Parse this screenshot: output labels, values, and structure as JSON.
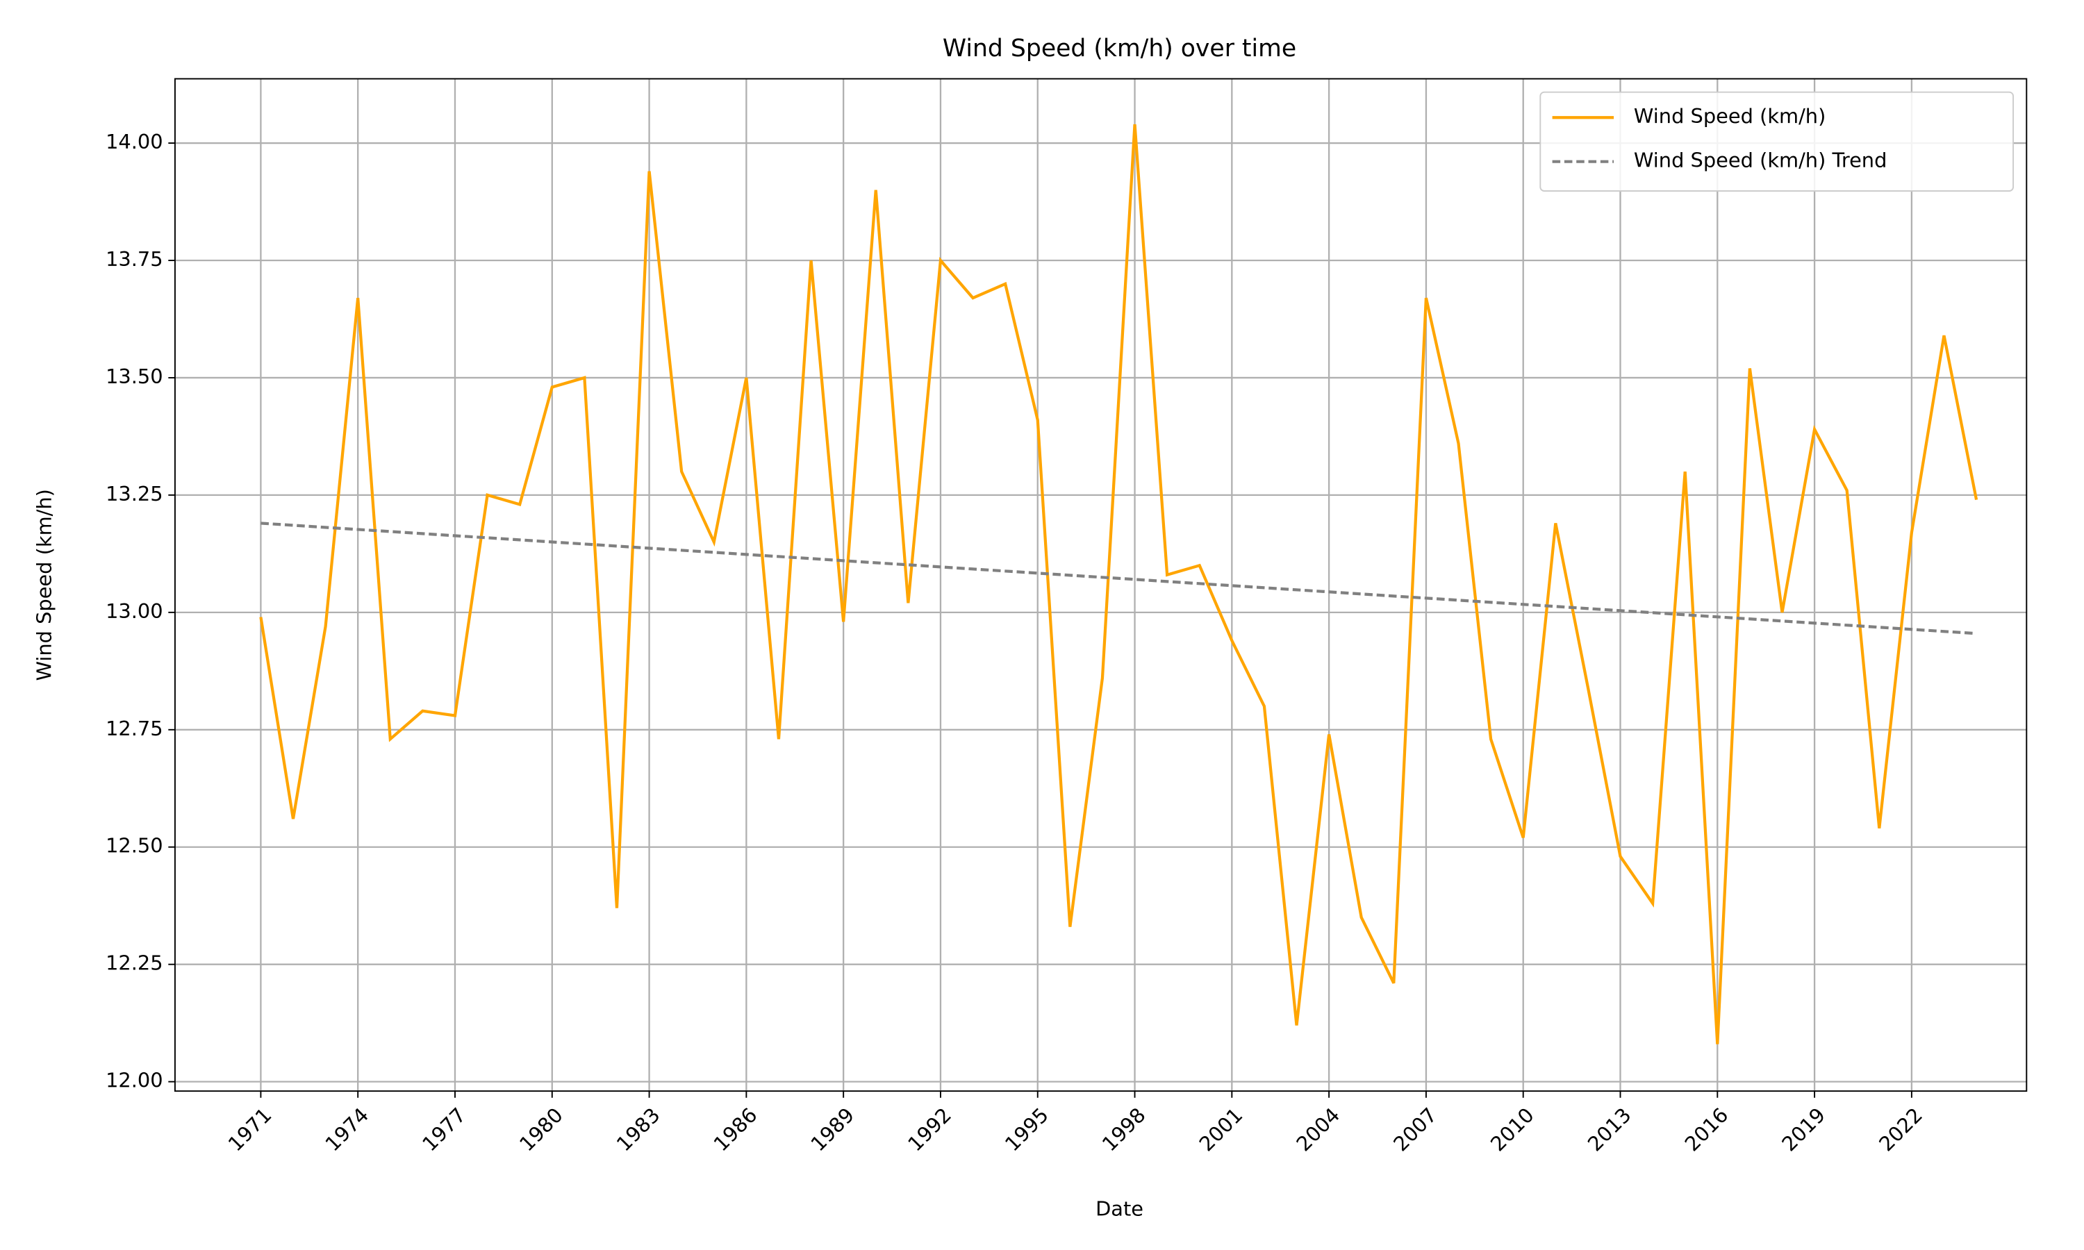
{
  "chart_data": {
    "type": "line",
    "title": "Wind Speed (km/h) over time",
    "xlabel": "Date",
    "ylabel": "Wind Speed (km/h)",
    "x": [
      1971,
      1972,
      1973,
      1974,
      1975,
      1976,
      1977,
      1978,
      1979,
      1980,
      1981,
      1982,
      1983,
      1984,
      1985,
      1986,
      1987,
      1988,
      1989,
      1990,
      1991,
      1992,
      1993,
      1994,
      1995,
      1996,
      1997,
      1998,
      1999,
      2000,
      2001,
      2002,
      2003,
      2004,
      2005,
      2006,
      2007,
      2008,
      2009,
      2010,
      2011,
      2012,
      2013,
      2014,
      2015,
      2016,
      2017,
      2018,
      2019,
      2020,
      2021,
      2022,
      2023,
      2024
    ],
    "series": [
      {
        "name": "Wind Speed (km/h)",
        "color": "#ffa500",
        "dash": false,
        "values": [
          12.99,
          12.56,
          12.97,
          13.67,
          12.73,
          12.79,
          12.78,
          13.25,
          13.23,
          13.48,
          13.5,
          12.37,
          13.94,
          13.3,
          13.15,
          13.5,
          12.73,
          13.75,
          12.98,
          13.9,
          13.02,
          13.75,
          13.67,
          13.7,
          13.41,
          12.33,
          12.86,
          14.04,
          13.08,
          13.1,
          12.94,
          12.8,
          12.12,
          12.74,
          12.35,
          12.21,
          13.67,
          13.36,
          12.73,
          12.52,
          13.19,
          12.84,
          12.48,
          12.38,
          13.3,
          12.08,
          13.52,
          13.0,
          13.39,
          13.26,
          12.54,
          13.17,
          13.59,
          13.24
        ]
      },
      {
        "name": "Wind Speed (km/h) Trend",
        "color": "#808080",
        "dash": true,
        "x": [
          1971,
          2024
        ],
        "values": [
          13.19,
          12.955
        ]
      }
    ],
    "xlim": [
      1968.35,
      2025.55
    ],
    "ylim": [
      11.98,
      14.137
    ],
    "xticks": [
      1971,
      1974,
      1977,
      1980,
      1983,
      1986,
      1989,
      1992,
      1995,
      1998,
      2001,
      2004,
      2007,
      2010,
      2013,
      2016,
      2019,
      2022
    ],
    "yticks": [
      {
        "value": 12,
        "label": "12.00"
      },
      {
        "value": 12.25,
        "label": "12.25"
      },
      {
        "value": 12.5,
        "label": "12.50"
      },
      {
        "value": 12.75,
        "label": "12.75"
      },
      {
        "value": 13,
        "label": "13.00"
      },
      {
        "value": 13.25,
        "label": "13.25"
      },
      {
        "value": 13.5,
        "label": "13.50"
      },
      {
        "value": 13.75,
        "label": "13.75"
      },
      {
        "value": 14,
        "label": "14.00"
      }
    ],
    "grid": true,
    "legend": "upper right"
  }
}
